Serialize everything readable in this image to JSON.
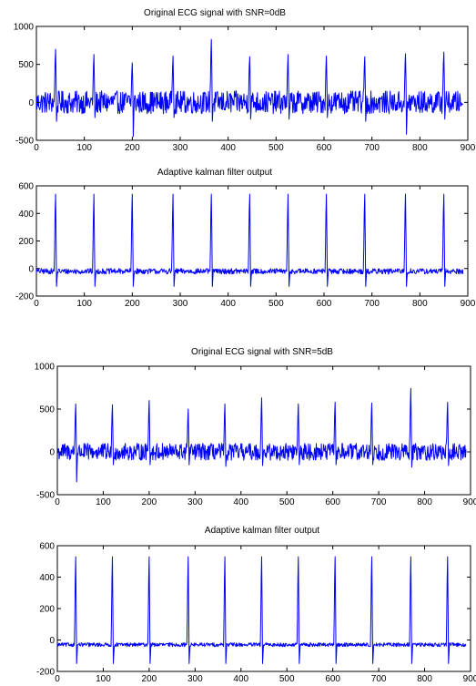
{
  "chart_data": [
    {
      "type": "line",
      "title": "Original ECG signal with SNR=0dB",
      "xlim": [
        0,
        900
      ],
      "ylim": [
        -500,
        1000
      ],
      "xticks": [
        0,
        100,
        200,
        300,
        400,
        500,
        600,
        700,
        800,
        900
      ],
      "yticks": [
        -500,
        0,
        500,
        1000
      ],
      "xtick_labels": [
        "0",
        "100",
        "200",
        "300",
        "400",
        "500",
        "600",
        "700",
        "800",
        "900"
      ],
      "ytick_labels": [
        "-500",
        "0",
        "500",
        "1000"
      ],
      "grid": false,
      "line_color": "#0000ff",
      "beats": [
        {
          "x": 40,
          "peak": 700,
          "trough": -250
        },
        {
          "x": 120,
          "peak": 630,
          "trough": -200
        },
        {
          "x": 200,
          "peak": 520,
          "trough": -450
        },
        {
          "x": 285,
          "peak": 610,
          "trough": -200
        },
        {
          "x": 365,
          "peak": 830,
          "trough": -250
        },
        {
          "x": 445,
          "peak": 600,
          "trough": -220
        },
        {
          "x": 525,
          "peak": 630,
          "trough": -220
        },
        {
          "x": 605,
          "peak": 610,
          "trough": -200
        },
        {
          "x": 685,
          "peak": 600,
          "trough": -250
        },
        {
          "x": 770,
          "peak": 640,
          "trough": -420
        },
        {
          "x": 850,
          "peak": 660,
          "trough": -220
        }
      ],
      "noise_amplitude": 150,
      "baseline": 0,
      "x_end": 890
    },
    {
      "type": "line",
      "title": "Adaptive kalman filter output",
      "xlim": [
        0,
        900
      ],
      "ylim": [
        -200,
        600
      ],
      "xticks": [
        0,
        100,
        200,
        300,
        400,
        500,
        600,
        700,
        800,
        900
      ],
      "yticks": [
        -200,
        0,
        200,
        400,
        600
      ],
      "xtick_labels": [
        "0",
        "100",
        "200",
        "300",
        "400",
        "500",
        "600",
        "700",
        "800",
        "900"
      ],
      "ytick_labels": [
        "-200",
        "0",
        "200",
        "400",
        "600"
      ],
      "grid": false,
      "line_color": "#0000ff",
      "beats": [
        {
          "x": 40,
          "peak": 540,
          "trough": -130
        },
        {
          "x": 120,
          "peak": 540,
          "trough": -130
        },
        {
          "x": 200,
          "peak": 540,
          "trough": -130
        },
        {
          "x": 285,
          "peak": 540,
          "trough": -130
        },
        {
          "x": 365,
          "peak": 540,
          "trough": -130
        },
        {
          "x": 445,
          "peak": 540,
          "trough": -130
        },
        {
          "x": 525,
          "peak": 540,
          "trough": -130
        },
        {
          "x": 605,
          "peak": 540,
          "trough": -130
        },
        {
          "x": 685,
          "peak": 540,
          "trough": -130
        },
        {
          "x": 770,
          "peak": 540,
          "trough": -130
        },
        {
          "x": 850,
          "peak": 540,
          "trough": -130
        }
      ],
      "noise_amplitude": 20,
      "baseline": -20,
      "x_end": 890
    },
    {
      "type": "line",
      "title": "Original ECG signal with SNR=5dB",
      "xlim": [
        0,
        900
      ],
      "ylim": [
        -500,
        1000
      ],
      "xticks": [
        0,
        100,
        200,
        300,
        400,
        500,
        600,
        700,
        800,
        900
      ],
      "yticks": [
        -500,
        0,
        500,
        1000
      ],
      "xtick_labels": [
        "0",
        "100",
        "200",
        "300",
        "400",
        "500",
        "600",
        "700",
        "800",
        "900"
      ],
      "ytick_labels": [
        "-500",
        "0",
        "500",
        "1000"
      ],
      "grid": false,
      "line_color": "#0000ff",
      "beats": [
        {
          "x": 40,
          "peak": 560,
          "trough": -350
        },
        {
          "x": 120,
          "peak": 550,
          "trough": -150
        },
        {
          "x": 200,
          "peak": 600,
          "trough": -150
        },
        {
          "x": 285,
          "peak": 500,
          "trough": -150
        },
        {
          "x": 365,
          "peak": 560,
          "trough": -170
        },
        {
          "x": 445,
          "peak": 630,
          "trough": -160
        },
        {
          "x": 525,
          "peak": 560,
          "trough": -150
        },
        {
          "x": 605,
          "peak": 580,
          "trough": -150
        },
        {
          "x": 685,
          "peak": 570,
          "trough": -150
        },
        {
          "x": 770,
          "peak": 740,
          "trough": -180
        },
        {
          "x": 850,
          "peak": 580,
          "trough": -160
        }
      ],
      "noise_amplitude": 100,
      "baseline": 0,
      "x_end": 890
    },
    {
      "type": "line",
      "title": "Adaptive kalman filter output",
      "xlim": [
        0,
        900
      ],
      "ylim": [
        -200,
        600
      ],
      "xticks": [
        0,
        100,
        200,
        300,
        400,
        500,
        600,
        700,
        800,
        900
      ],
      "yticks": [
        -200,
        0,
        200,
        400,
        600
      ],
      "xtick_labels": [
        "0",
        "100",
        "200",
        "300",
        "400",
        "500",
        "600",
        "700",
        "800",
        "900"
      ],
      "ytick_labels": [
        "-200",
        "0",
        "200",
        "400",
        "600"
      ],
      "grid": false,
      "line_color": "#0000ff",
      "beats": [
        {
          "x": 40,
          "peak": 530,
          "trough": -150
        },
        {
          "x": 120,
          "peak": 530,
          "trough": -150
        },
        {
          "x": 200,
          "peak": 530,
          "trough": -150
        },
        {
          "x": 285,
          "peak": 530,
          "trough": -150
        },
        {
          "x": 365,
          "peak": 530,
          "trough": -150
        },
        {
          "x": 445,
          "peak": 530,
          "trough": -150
        },
        {
          "x": 525,
          "peak": 530,
          "trough": -150
        },
        {
          "x": 605,
          "peak": 530,
          "trough": -150
        },
        {
          "x": 685,
          "peak": 530,
          "trough": -150
        },
        {
          "x": 770,
          "peak": 530,
          "trough": -150
        },
        {
          "x": 850,
          "peak": 530,
          "trough": -150
        }
      ],
      "noise_amplitude": 12,
      "baseline": -30,
      "x_end": 890
    }
  ]
}
